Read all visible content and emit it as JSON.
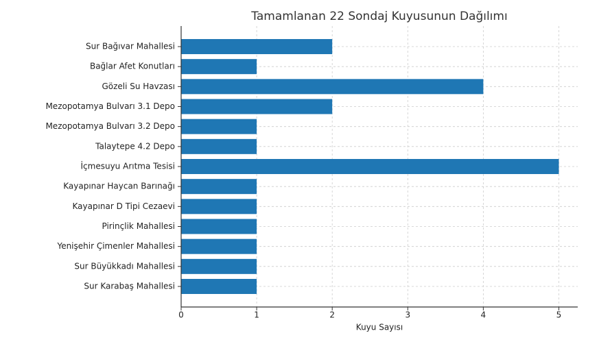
{
  "chart_data": {
    "type": "barh",
    "title": "Tamamlanan 22 Sondaj Kuyusunun Dağılımı",
    "xlabel": "Kuyu Sayısı",
    "categories": [
      "Sur Bağıvar Mahallesi",
      "Bağlar Afet Konutları",
      "Gözeli Su Havzası",
      "Mezopotamya Bulvarı 3.1 Depo",
      "Mezopotamya Bulvarı 3.2 Depo",
      "Talaytepe 4.2 Depo",
      "İçmesuyu Arıtma Tesisi",
      "Kayapınar Haycan Barınağı",
      "Kayapınar D Tipi Cezaevi",
      "Pirinçlik Mahallesi",
      "Yenişehir Çimenler Mahallesi",
      "Sur Büyükkadı Mahallesi",
      "Sur Karabaş Mahallesi"
    ],
    "values": [
      2,
      1,
      4,
      2,
      1,
      1,
      5,
      1,
      1,
      1,
      1,
      1,
      1
    ],
    "color": "#1f77b4",
    "xlim": [
      0,
      5.25
    ],
    "xticks": [
      0,
      1,
      2,
      3,
      4,
      5
    ],
    "grid": true
  }
}
